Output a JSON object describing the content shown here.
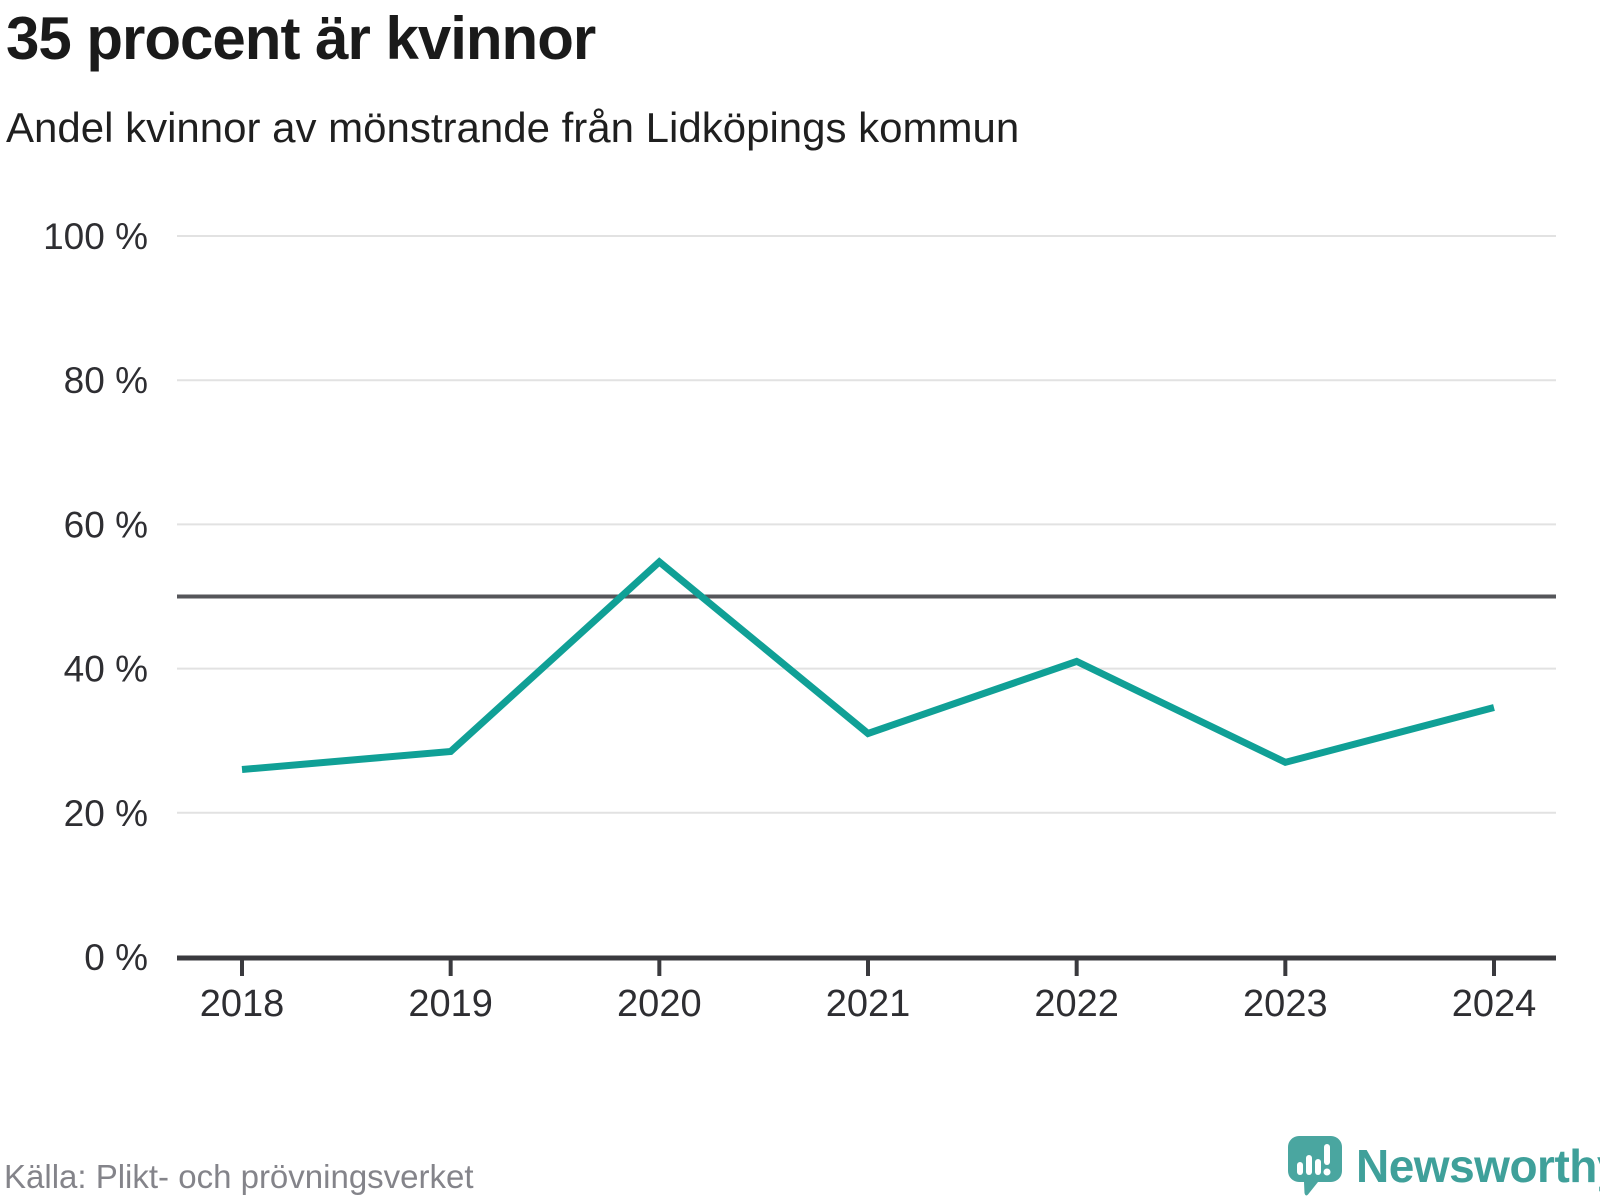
{
  "header": {
    "title": "35 procent är kvinnor",
    "subtitle": "Andel kvinnor av mönstrande från Lidköpings kommun"
  },
  "chart_data": {
    "type": "line",
    "title": "35 procent är kvinnor",
    "subtitle": "Andel kvinnor av mönstrande från Lidköpings kommun",
    "x": [
      "2018",
      "2019",
      "2020",
      "2021",
      "2022",
      "2023",
      "2024"
    ],
    "values": [
      26,
      28.5,
      54.8,
      31,
      41,
      27,
      34.6
    ],
    "xlabel": "",
    "ylabel": "",
    "ylim": [
      0,
      100
    ],
    "yticks": [
      0,
      20,
      40,
      60,
      80,
      100
    ],
    "ytick_labels": [
      "0 %",
      "20 %",
      "40 %",
      "60 %",
      "80 %",
      "100 %"
    ],
    "reference_line": {
      "value": 50
    },
    "grid": true,
    "legend": false
  },
  "footer": {
    "source": "Källa: Plikt- och prövningsverket",
    "brand": "Newsworthy"
  },
  "colors": {
    "line": "#10a096",
    "reference_line": "#55565a",
    "axis": "#3a3a3e",
    "grid": "#e2e2e2",
    "tick_label": "#2e2e32",
    "logo": "#4aa6a0",
    "wordmark": "#3fa09a"
  },
  "icons": {
    "brand_icon": "newsworthy-speech-bubble-bar-chart-icon"
  }
}
